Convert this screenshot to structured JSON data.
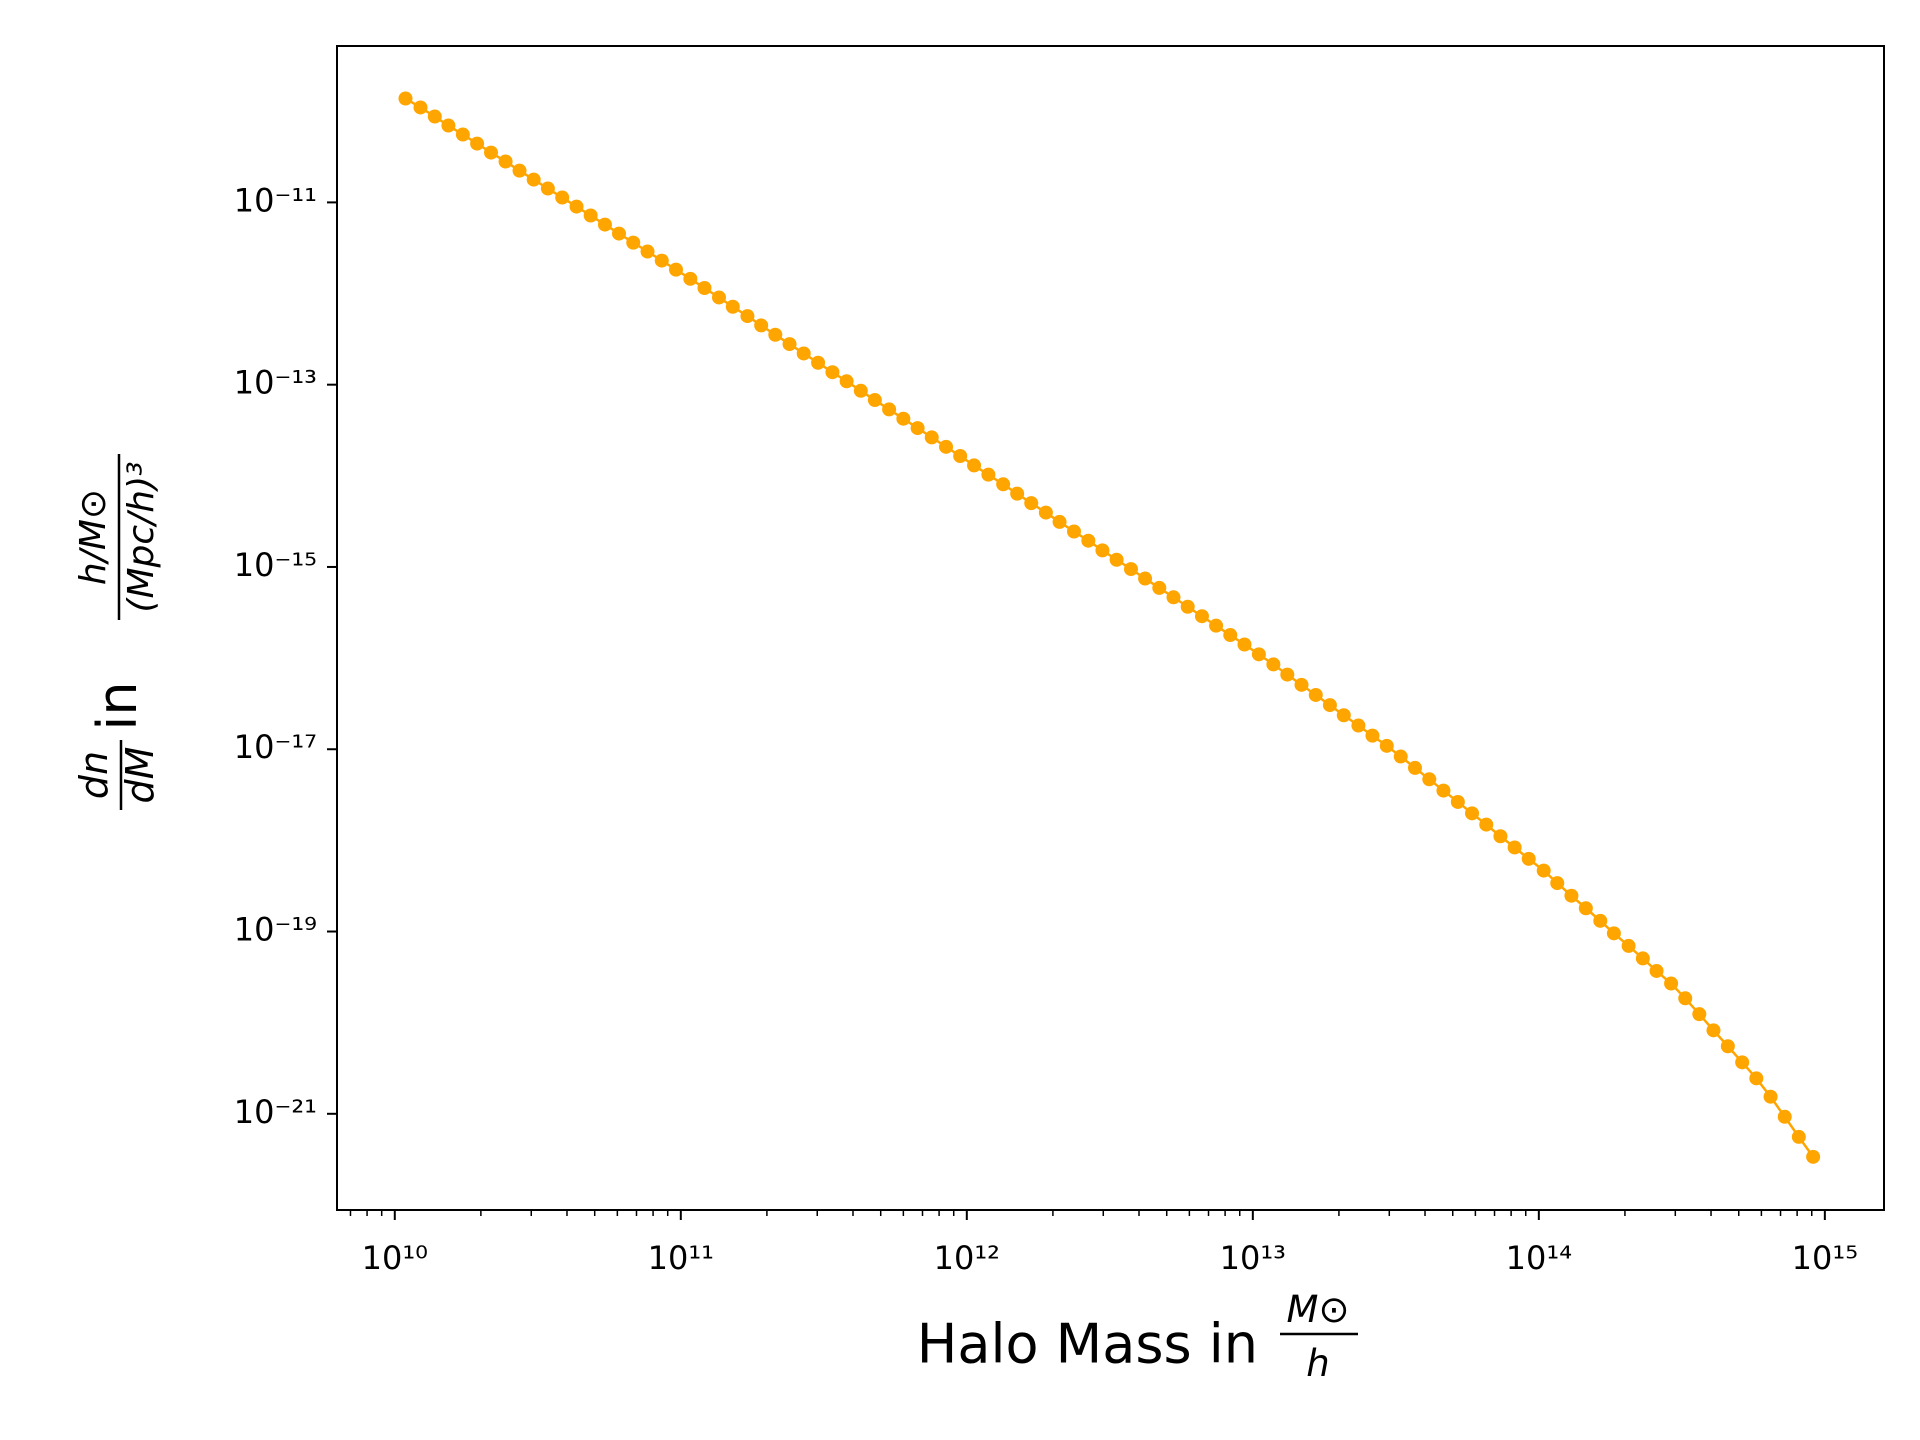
{
  "chart_data": {
    "type": "line",
    "marker": true,
    "color": "#ffa500",
    "xscale": "log",
    "yscale": "log",
    "xlabel": {
      "text": "Halo Mass in",
      "numerator": "M⊙",
      "denominator": "h"
    },
    "ylabel": {
      "numerator": "dn",
      "denominator": "dM",
      "text": "in",
      "fraction_numerator": "h/M⊙",
      "fraction_denominator": "(Mpc/h)³"
    },
    "xlim": [
      6280000000.0,
      1610000000000000.0
    ],
    "ylim": [
      8.8e-23,
      5.2e-10
    ],
    "xticks": [
      {
        "value": 10000000000.0,
        "label": "10¹⁰"
      },
      {
        "value": 100000000000.0,
        "label": "10¹¹"
      },
      {
        "value": 1000000000000.0,
        "label": "10¹²"
      },
      {
        "value": 10000000000000.0,
        "label": "10¹³"
      },
      {
        "value": 100000000000000.0,
        "label": "10¹⁴"
      },
      {
        "value": 1000000000000000.0,
        "label": "10¹⁵"
      }
    ],
    "xminorticks": [
      7000000000.0,
      8000000000.0,
      9000000000.0,
      20000000000.0,
      30000000000.0,
      40000000000.0,
      50000000000.0,
      60000000000.0,
      70000000000.0,
      80000000000.0,
      90000000000.0,
      200000000000.0,
      300000000000.0,
      400000000000.0,
      500000000000.0,
      600000000000.0,
      700000000000.0,
      800000000000.0,
      900000000000.0,
      2000000000000.0,
      3000000000000.0,
      4000000000000.0,
      5000000000000.0,
      6000000000000.0,
      7000000000000.0,
      8000000000000.0,
      9000000000000.0,
      20000000000000.0,
      30000000000000.0,
      40000000000000.0,
      50000000000000.0,
      60000000000000.0,
      70000000000000.0,
      80000000000000.0,
      90000000000000.0,
      200000000000000.0,
      300000000000000.0,
      400000000000000.0,
      500000000000000.0,
      600000000000000.0,
      700000000000000.0,
      800000000000000.0,
      900000000000000.0
    ],
    "yticks": [
      {
        "value": 1e-11,
        "label": "10⁻¹¹"
      },
      {
        "value": 1e-13,
        "label": "10⁻¹³"
      },
      {
        "value": 1e-15,
        "label": "10⁻¹⁵"
      },
      {
        "value": 1e-17,
        "label": "10⁻¹⁷"
      },
      {
        "value": 1e-19,
        "label": "10⁻¹⁹"
      },
      {
        "value": 1e-21,
        "label": "10⁻²¹"
      }
    ],
    "x": [
      10900000000.0,
      12300000000.0,
      13800000000.0,
      15400000000.0,
      17300000000.0,
      19400000000.0,
      21700000000.0,
      24400000000.0,
      27300000000.0,
      30600000000.0,
      34300000000.0,
      38500000000.0,
      43200000000.0,
      48400000000.0,
      54300000000.0,
      60800000000.0,
      68200000000.0,
      76500000000.0,
      85800000000.0,
      96200000000.0,
      108000000000.0,
      121000000000.0,
      136000000000.0,
      152000000000.0,
      171000000000.0,
      191000000000.0,
      214000000000.0,
      240000000000.0,
      269000000000.0,
      302000000000.0,
      339000000000.0,
      380000000000.0,
      426000000000.0,
      477000000000.0,
      535000000000.0,
      600000000000.0,
      673000000000.0,
      754000000000.0,
      846000000000.0,
      948000000000.0,
      1060000000000.0,
      1190000000000.0,
      1340000000000.0,
      1500000000000.0,
      1680000000000.0,
      1890000000000.0,
      2110000000000.0,
      2370000000000.0,
      2660000000000.0,
      2980000000000.0,
      3340000000000.0,
      3750000000000.0,
      4200000000000.0,
      4710000000000.0,
      5280000000000.0,
      5920000000000.0,
      6640000000000.0,
      7440000000000.0,
      8340000000000.0,
      9350000000000.0,
      10500000000000.0,
      11800000000000.0,
      13200000000000.0,
      14800000000000.0,
      16600000000000.0,
      18600000000000.0,
      20800000000000.0,
      23400000000000.0,
      26200000000000.0,
      29400000000000.0,
      32900000000000.0,
      36900000000000.0,
      41400000000000.0,
      46400000000000.0,
      52100000000000.0,
      58400000000000.0,
      65500000000000.0,
      73400000000000.0,
      82300000000000.0,
      92200000000000.0,
      104000000000000.0,
      116000000000000.0,
      130000000000000.0,
      146000000000000.0,
      164000000000000.0,
      183000000000000.0,
      206000000000000.0,
      231000000000000.0,
      258000000000000.0,
      290000000000000.0,
      325000000000000.0,
      364000000000000.0,
      408000000000000.0,
      458000000000000.0,
      514000000000000.0,
      576000000000000.0,
      646000000000000.0,
      724000000000000.0,
      811000000000000.0,
      910000000000000.0
    ],
    "series": [
      {
        "values": [
          1.38e-10,
          1.1e-10,
          8.75e-11,
          6.97e-11,
          5.55e-11,
          4.42e-11,
          3.52e-11,
          2.81e-11,
          2.23e-11,
          1.78e-11,
          1.42e-11,
          1.13e-11,
          8.99e-12,
          7.18e-12,
          5.71e-12,
          4.55e-12,
          3.62e-12,
          2.89e-12,
          2.3e-12,
          1.83e-12,
          1.45e-12,
          1.15e-12,
          9.06e-13,
          7.16e-13,
          5.66e-13,
          4.47e-13,
          3.53e-13,
          2.79e-13,
          2.2e-13,
          1.74e-13,
          1.37e-13,
          1.09e-13,
          8.57e-14,
          6.78e-14,
          5.35e-14,
          4.23e-14,
          3.34e-14,
          2.64e-14,
          2.08e-14,
          1.65e-14,
          1.3e-14,
          1.03e-14,
          8.07e-15,
          6.37e-15,
          5.01e-15,
          3.95e-15,
          3.12e-15,
          2.45e-15,
          1.94e-15,
          1.52e-15,
          1.2e-15,
          9.48e-16,
          7.46e-16,
          5.89e-16,
          4.65e-16,
          3.66e-16,
          2.88e-16,
          2.27e-16,
          1.79e-16,
          1.41e-16,
          1.1e-16,
          8.53e-17,
          6.59e-17,
          5.09e-17,
          3.94e-17,
          3.05e-17,
          2.36e-17,
          1.82e-17,
          1.41e-17,
          1.09e-17,
          8.32e-18,
          6.24e-18,
          4.68e-18,
          3.52e-18,
          2.64e-18,
          1.98e-18,
          1.49e-18,
          1.11e-18,
          8.36e-19,
          6.27e-19,
          4.66e-19,
          3.4e-19,
          2.47e-19,
          1.8e-19,
          1.31e-19,
          9.55e-20,
          6.95e-20,
          5.07e-20,
          3.69e-20,
          2.69e-20,
          1.85e-20,
          1.24e-20,
          8.24e-21,
          5.51e-21,
          3.67e-21,
          2.45e-21,
          1.54e-21,
          9.27e-22,
          5.58e-22,
          3.37e-22
        ]
      }
    ]
  }
}
